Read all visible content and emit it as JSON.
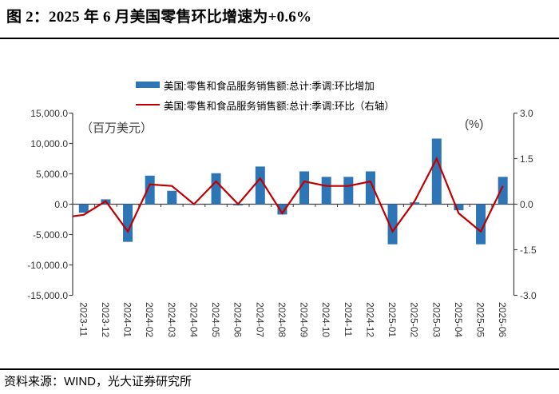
{
  "figure": {
    "title": "图 2：2025 年 6 月美国零售环比增速为+0.6%",
    "source": "资料来源：WIND，光大证券研究所"
  },
  "legend": {
    "items": [
      {
        "label": "美国:零售和食品服务销售额:总计:季调:环比增加",
        "swatch": "bar",
        "color": "#2E75B6"
      },
      {
        "label": "美国:零售和食品服务销售额:总计:季调:环比（右轴）",
        "swatch": "line",
        "color": "#C00000"
      }
    ]
  },
  "chart_data": {
    "type": "bar+line",
    "title": "图 2：2025 年 6 月美国零售环比增速为+0.6%",
    "categories": [
      "2023-11",
      "2023-12",
      "2024-01",
      "2024-02",
      "2024-03",
      "2024-04",
      "2024-05",
      "2024-06",
      "2024-07",
      "2024-08",
      "2024-09",
      "2024-10",
      "2024-11",
      "2024-12",
      "2025-01",
      "2025-02",
      "2025-03",
      "2025-04",
      "2025-05",
      "2025-06"
    ],
    "series": [
      {
        "name": "美国:零售和食品服务销售额:总计:季调:环比增加",
        "type": "bar",
        "axis": "left",
        "unit": "百万美元",
        "color": "#2E75B6",
        "values": [
          -1400,
          800,
          -6200,
          4700,
          2200,
          -100,
          5100,
          -200,
          6200,
          -1700,
          5400,
          4500,
          4500,
          5400,
          -6600,
          300,
          10800,
          -1000,
          -6600,
          4500
        ]
      },
      {
        "name": "美国:零售和食品服务销售额:总计:季调:环比（右轴）",
        "type": "line",
        "axis": "right",
        "unit": "%",
        "color": "#C00000",
        "left_edge_value": -0.4,
        "values": [
          -0.35,
          0.1,
          -0.9,
          0.65,
          0.6,
          0.0,
          0.75,
          0.0,
          0.85,
          -0.3,
          0.75,
          0.6,
          0.6,
          0.75,
          -0.9,
          0.1,
          1.5,
          -0.3,
          -0.9,
          0.6
        ]
      }
    ],
    "left_axis": {
      "label": "（百万美元）",
      "min": -15000,
      "max": 15000,
      "tick_labels": [
        "15,000.0",
        "10,000.0",
        "5,000.0",
        "0.0",
        "-5,000.0",
        "-10,000.0",
        "-15,000.0"
      ]
    },
    "right_axis": {
      "label": "(%)",
      "min": -3.0,
      "max": 3.0,
      "tick_labels": [
        "3.0",
        "1.5",
        "0.0",
        "-1.5",
        "-3.0"
      ]
    },
    "grid": false,
    "legend_position": "top-center",
    "axis_color": "#404040",
    "tick_label_color": "#333333"
  }
}
